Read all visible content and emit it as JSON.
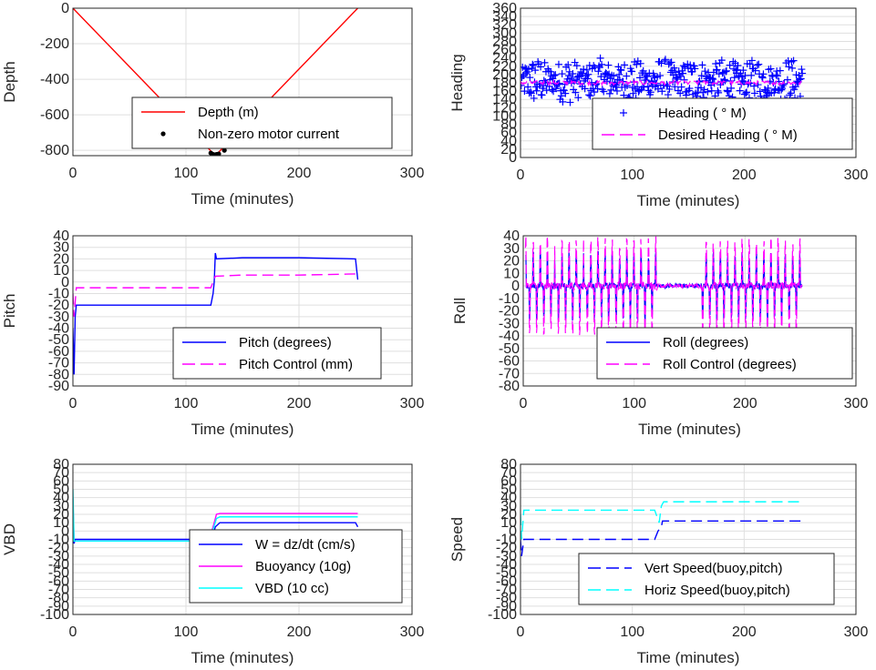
{
  "chart_data": [
    {
      "type": "line",
      "xlabel": "Time (minutes)",
      "ylabel": "Depth",
      "xlim": [
        0,
        300
      ],
      "ylim": [
        -830,
        0
      ],
      "xticks": [
        0,
        100,
        200,
        300
      ],
      "yticks": [
        0,
        -200,
        -400,
        -600,
        -800
      ],
      "grid": true,
      "legend_position": "bottom-right",
      "series": [
        {
          "name": "Depth (m)",
          "style": "line",
          "color": "#ff0000",
          "x": [
            0,
            123,
            126,
            129,
            252
          ],
          "y": [
            0,
            -810,
            -825,
            -810,
            0
          ]
        },
        {
          "name": "Non-zero motor current",
          "style": "dots",
          "color": "#000000",
          "x": [
            122,
            123,
            124,
            125,
            126,
            127,
            128,
            129,
            134
          ],
          "y": [
            -815,
            -820,
            -823,
            -825,
            -825,
            -823,
            -822,
            -820,
            -800
          ]
        }
      ]
    },
    {
      "type": "line",
      "xlabel": "Time (minutes)",
      "ylabel": "Heading",
      "xlim": [
        0,
        300
      ],
      "ylim": [
        0,
        360
      ],
      "xticks": [
        0,
        100,
        200,
        300
      ],
      "yticks": [
        0,
        20,
        40,
        60,
        80,
        100,
        120,
        140,
        160,
        180,
        200,
        220,
        240,
        260,
        280,
        300,
        320,
        340,
        360
      ],
      "grid": true,
      "legend_position": "bottom-right",
      "series": [
        {
          "name": "Heading ( ° M)",
          "style": "markers",
          "color": "#0000ff",
          "x_range": [
            0,
            252
          ],
          "center": 185,
          "spread": 55
        },
        {
          "name": "Desired Heading ( ° M)",
          "style": "dashed",
          "color": "#ff00ff",
          "x_range": [
            0,
            252
          ],
          "center": 180,
          "spread": 10
        }
      ]
    },
    {
      "type": "line",
      "xlabel": "Time (minutes)",
      "ylabel": "Pitch",
      "xlim": [
        0,
        300
      ],
      "ylim": [
        -90,
        40
      ],
      "xticks": [
        0,
        100,
        200,
        300
      ],
      "yticks": [
        40,
        30,
        20,
        10,
        0,
        -10,
        -20,
        -30,
        -40,
        -50,
        -60,
        -70,
        -80,
        -90
      ],
      "grid": true,
      "legend_position": "bottom-right",
      "series": [
        {
          "name": "Pitch (degrees)",
          "style": "line",
          "color": "#0000ff",
          "x": [
            0,
            1,
            2,
            3,
            10,
            60,
            100,
            122,
            124,
            125,
            126,
            127,
            150,
            200,
            250,
            252
          ],
          "y": [
            -40,
            -80,
            -30,
            -20,
            -20,
            -20,
            -20,
            -20,
            -10,
            0,
            25,
            20,
            21,
            21,
            20,
            2
          ]
        },
        {
          "name": "Pitch Control (mm)",
          "style": "dashed",
          "color": "#ff00ff",
          "x": [
            0,
            1,
            3,
            10,
            60,
            122,
            124,
            126,
            150,
            200,
            252
          ],
          "y": [
            -10,
            -30,
            -5,
            -5,
            -5,
            -5,
            0,
            5,
            6,
            6,
            7
          ]
        }
      ]
    },
    {
      "type": "line",
      "xlabel": "Time (minutes)",
      "ylabel": "Roll",
      "xlim": [
        0,
        300
      ],
      "ylim": [
        -80,
        40
      ],
      "xticks": [
        0,
        100,
        200,
        300
      ],
      "yticks": [
        40,
        30,
        20,
        10,
        0,
        -10,
        -20,
        -30,
        -40,
        -50,
        -60,
        -70,
        -80
      ],
      "grid": true,
      "legend_position": "bottom-right",
      "series": [
        {
          "name": "Roll (degrees)",
          "style": "line",
          "color": "#0000ff",
          "x_range": [
            2,
            252
          ],
          "amplitude": 28
        },
        {
          "name": "Roll Control (degrees)",
          "style": "dashed",
          "color": "#ff00ff",
          "x_range": [
            2,
            252
          ],
          "amplitude": 40
        }
      ]
    },
    {
      "type": "line",
      "xlabel": "Time (minutes)",
      "ylabel": "VBD",
      "xlim": [
        0,
        300
      ],
      "ylim": [
        -100,
        80
      ],
      "xticks": [
        0,
        100,
        200,
        300
      ],
      "yticks": [
        "80",
        "70",
        "60",
        "50",
        "40",
        "30",
        "20",
        "10",
        "0",
        "-10",
        "-20",
        "-30",
        "-40",
        "-50",
        "-60",
        "-70",
        "-80",
        "-90",
        "-100"
      ],
      "grid": true,
      "legend_position": "bottom-right",
      "series": [
        {
          "name": "W = dz/dt (cm/s)",
          "style": "line",
          "color": "#0000ff",
          "x": [
            0,
            1,
            2,
            3,
            10,
            60,
            100,
            120,
            124,
            126,
            130,
            150,
            200,
            250,
            252
          ],
          "y": [
            30,
            -15,
            -10,
            -10,
            -10,
            -10,
            -10,
            -10,
            -5,
            5,
            10,
            10,
            10,
            10,
            5
          ]
        },
        {
          "name": "Buoyancy (10g)",
          "style": "line",
          "color": "#ff00ff",
          "x": [
            0,
            1,
            3,
            60,
            120,
            124,
            127,
            130,
            200,
            252
          ],
          "y": [
            40,
            -12,
            -12,
            -12,
            -12,
            5,
            20,
            21,
            21,
            21
          ]
        },
        {
          "name": "VBD (10 cc)",
          "style": "line",
          "color": "#00ffff",
          "x": [
            0,
            1,
            3,
            60,
            120,
            124,
            127,
            130,
            200,
            252
          ],
          "y": [
            50,
            -12,
            -12,
            -12,
            -12,
            2,
            15,
            17,
            17,
            17
          ]
        }
      ]
    },
    {
      "type": "line",
      "xlabel": "Time (minutes)",
      "ylabel": "Speed",
      "xlim": [
        0,
        300
      ],
      "ylim": [
        -100,
        80
      ],
      "xticks": [
        0,
        100,
        200,
        300
      ],
      "yticks": [
        "80",
        "70",
        "60",
        "50",
        "40",
        "30",
        "20",
        "10",
        "0",
        "-10",
        "-20",
        "-30",
        "-40",
        "-50",
        "-60",
        "-70",
        "-80",
        "-90",
        "-100"
      ],
      "grid": true,
      "legend_position": "bottom-right",
      "series": [
        {
          "name": "Vert Speed(buoy,pitch)",
          "style": "dashed",
          "color": "#0000ff",
          "x": [
            0,
            1,
            3,
            10,
            60,
            120,
            123,
            126,
            127,
            130,
            150,
            200,
            252
          ],
          "y": [
            -10,
            -30,
            -10,
            -10,
            -10,
            -10,
            0,
            5,
            12,
            12,
            12,
            12,
            12
          ]
        },
        {
          "name": "Horiz Speed(buoy,pitch)",
          "style": "dashed",
          "color": "#00ffff",
          "x": [
            0,
            1,
            3,
            10,
            60,
            120,
            124,
            126,
            128,
            130,
            150,
            200,
            252
          ],
          "y": [
            20,
            -10,
            25,
            25,
            25,
            25,
            10,
            30,
            35,
            35,
            35,
            35,
            35
          ]
        }
      ]
    }
  ]
}
